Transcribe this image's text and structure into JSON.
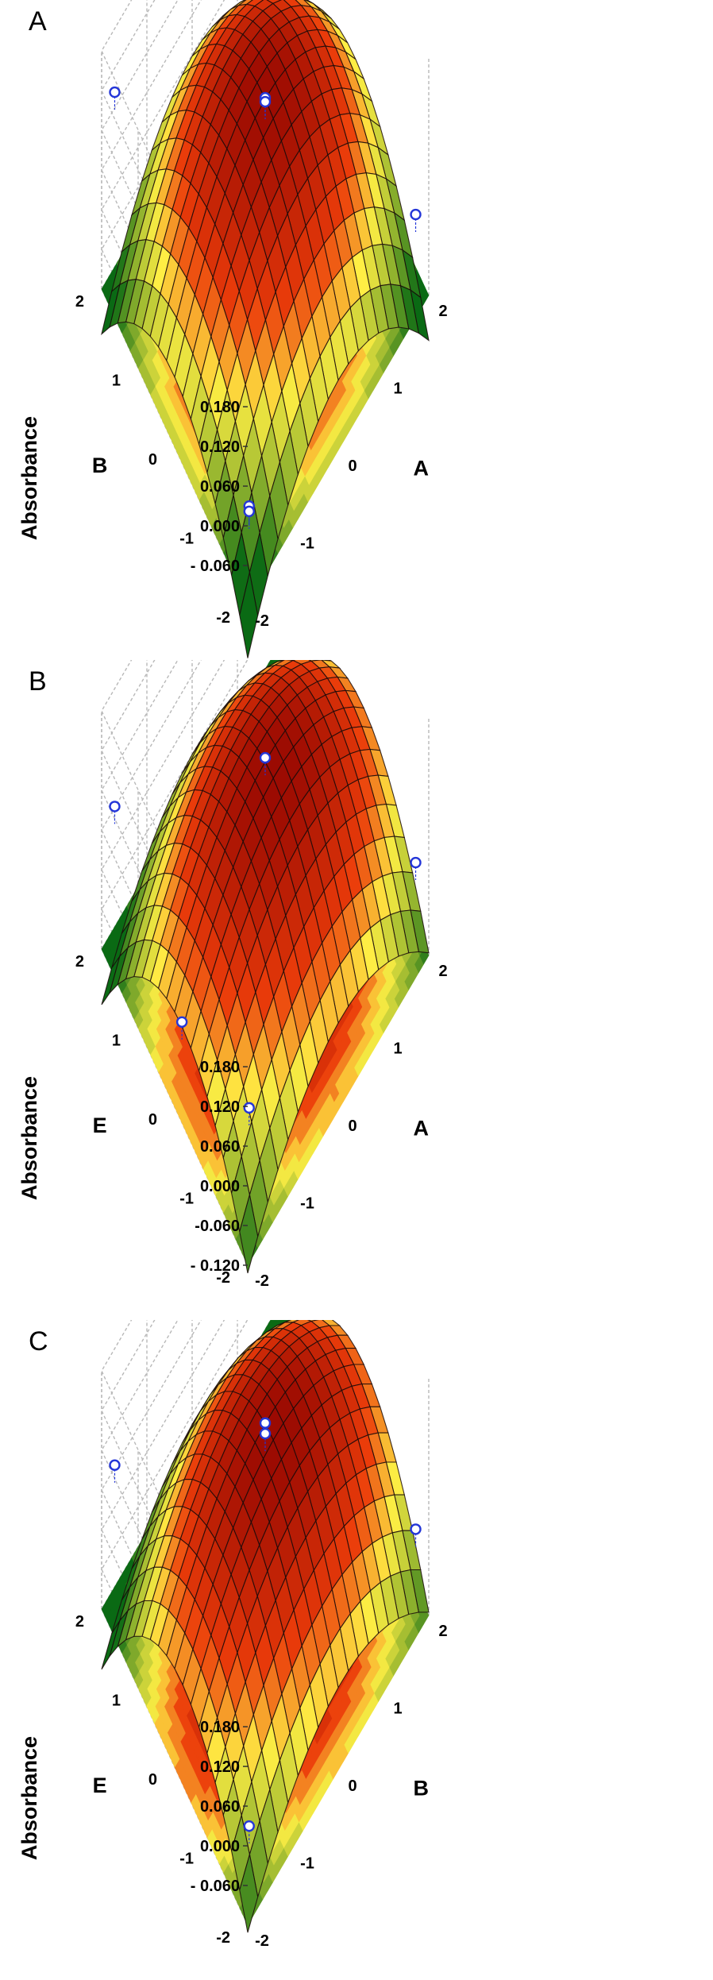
{
  "chart_data": [
    {
      "panel": "A",
      "type": "surface3d",
      "zlabel": "Absorbance",
      "xlabel": "A",
      "ylabel": "B",
      "z_ticks": [
        "0.180",
        "0.120",
        "0.060",
        "0.000",
        "- 0.060"
      ],
      "x_ticks": [
        "-2",
        "-1",
        "0",
        "1",
        "2"
      ],
      "y_ticks": [
        "-2",
        "-1",
        "0",
        "1",
        "2"
      ],
      "xlim": [
        -2,
        2
      ],
      "ylim": [
        -2,
        2
      ],
      "zlim": [
        -0.12,
        0.18
      ],
      "grid": true,
      "contour_floor": true,
      "surface_model": {
        "c0": 0.172,
        "cx": 0.003,
        "cy": 0.003,
        "cxx": -0.045,
        "cyy": -0.045,
        "cxy": 0.0
      },
      "points": [
        {
          "x": -2,
          "y": 2,
          "z": 0.178
        },
        {
          "x": 2,
          "y": 2,
          "z": 0.17
        },
        {
          "x": 0,
          "y": 0,
          "z": 0.174
        },
        {
          "x": 0,
          "y": 0,
          "z": 0.168
        },
        {
          "x": 2,
          "y": -2,
          "z": 0.002
        },
        {
          "x": -2,
          "y": -2,
          "z": -0.008
        },
        {
          "x": -2,
          "y": -2,
          "z": -0.016
        }
      ]
    },
    {
      "panel": "B",
      "type": "surface3d",
      "zlabel": "Absorbance",
      "xlabel": "A",
      "ylabel": "E",
      "z_ticks": [
        "0.180",
        "0.120",
        "0.060",
        "0.000",
        "-0.060",
        "- 0.120"
      ],
      "x_ticks": [
        "-2",
        "-1",
        "0",
        "1",
        "2"
      ],
      "y_ticks": [
        "-2",
        "-1",
        "0",
        "1",
        "2"
      ],
      "xlim": [
        -2,
        2
      ],
      "ylim": [
        -2,
        2
      ],
      "zlim": [
        -0.12,
        0.18
      ],
      "grid": true,
      "contour_floor": true,
      "surface_model": {
        "c0": 0.168,
        "cx": 0.004,
        "cy": -0.018,
        "cxx": -0.034,
        "cyy": -0.048,
        "cxy": 0.0
      },
      "points": [
        {
          "x": 2,
          "y": 2,
          "z": 0.18
        },
        {
          "x": 0,
          "y": 0,
          "z": 0.174
        },
        {
          "x": -2,
          "y": 2,
          "z": 0.096
        },
        {
          "x": -2,
          "y": -2,
          "z": 0.08
        },
        {
          "x": 2,
          "y": -2,
          "z": 0.02
        },
        {
          "x": -2,
          "y": 0,
          "z": -0.01
        }
      ]
    },
    {
      "panel": "C",
      "type": "surface3d",
      "zlabel": "Absorbance",
      "xlabel": "B",
      "ylabel": "E",
      "z_ticks": [
        "0.180",
        "0.120",
        "0.060",
        "0.000",
        "- 0.060"
      ],
      "x_ticks": [
        "-2",
        "-1",
        "0",
        "1",
        "2"
      ],
      "y_ticks": [
        "-2",
        "-1",
        "0",
        "1",
        "2"
      ],
      "xlim": [
        -2,
        2
      ],
      "ylim": [
        -2,
        2
      ],
      "zlim": [
        -0.12,
        0.18
      ],
      "grid": true,
      "contour_floor": true,
      "surface_model": {
        "c0": 0.165,
        "cx": 0.004,
        "cy": -0.02,
        "cxx": -0.032,
        "cyy": -0.05,
        "cxy": 0.0
      },
      "points": [
        {
          "x": 2,
          "y": 2,
          "z": 0.18
        },
        {
          "x": 0,
          "y": 0,
          "z": 0.166
        },
        {
          "x": 0,
          "y": 0,
          "z": 0.15
        },
        {
          "x": -2,
          "y": 2,
          "z": 0.098
        },
        {
          "x": 2,
          "y": -2,
          "z": 0.01
        },
        {
          "x": -2,
          "y": -2,
          "z": -0.008
        }
      ]
    }
  ],
  "colors": {
    "surface_high": "#8a0000",
    "surface_mid": "#ffee44",
    "surface_low": "#0a6a14",
    "grid": "#b8b8b8",
    "points": "#2436d8"
  }
}
